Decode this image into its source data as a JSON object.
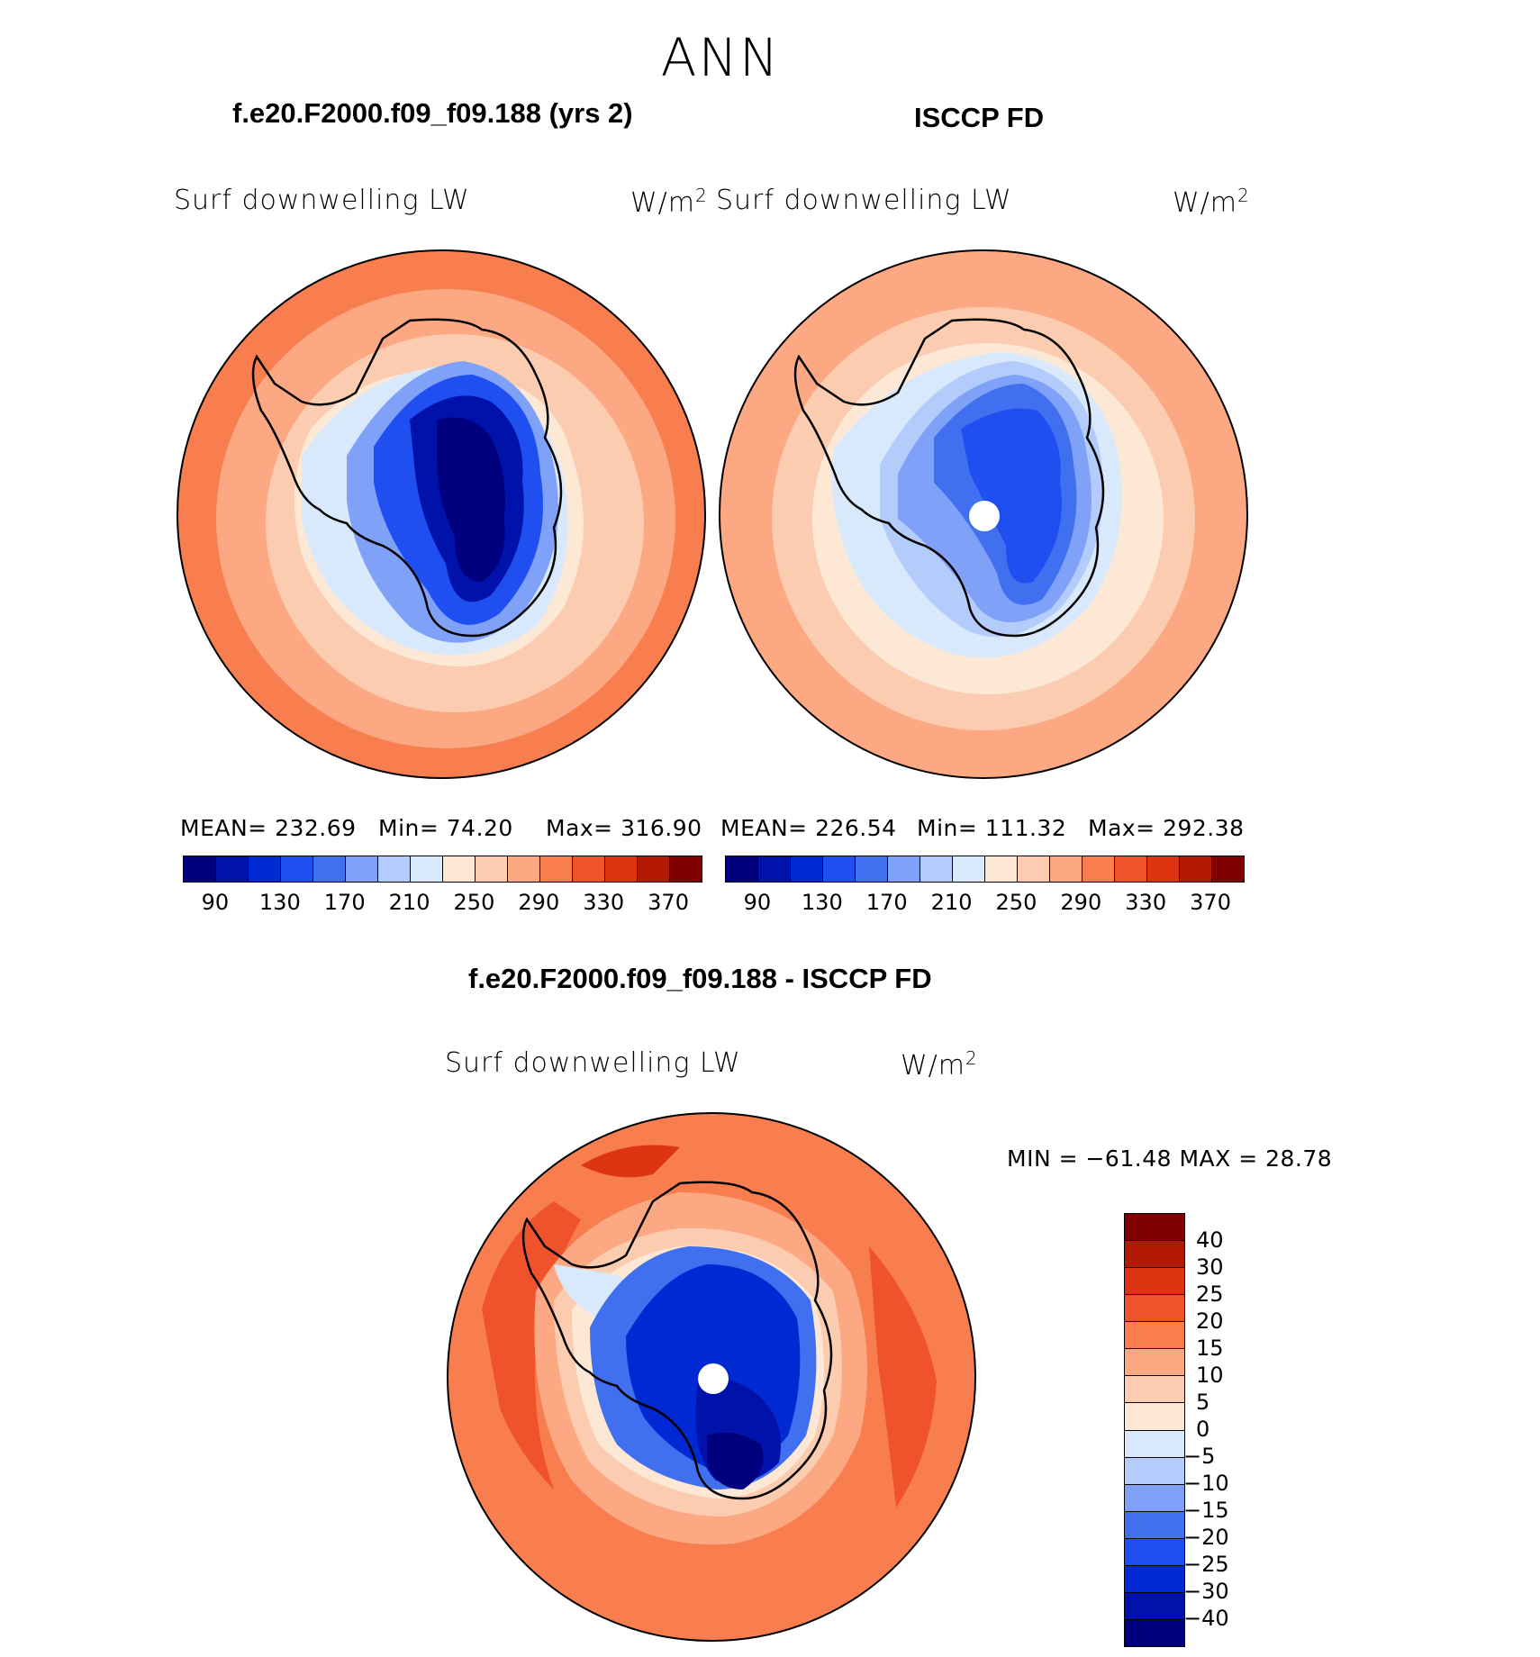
{
  "title": "ANN",
  "panels": [
    {
      "title": "f.e20.F2000.f09_f09.188 (yrs 2)",
      "variable": "Surf downwelling LW",
      "units_base": "W/m",
      "units_exp": "2",
      "stats": {
        "mean": "MEAN=  232.69",
        "min": "Min=    74.20",
        "max": "Max=  316.90"
      },
      "colorbar_ticks": [
        "90",
        "130",
        "170",
        "210",
        "250",
        "290",
        "330",
        "370"
      ]
    },
    {
      "title": "ISCCP FD",
      "variable": "Surf downwelling LW",
      "units_base": "W/m",
      "units_exp": "2",
      "stats": {
        "mean": "MEAN=  226.54",
        "min": "Min=  111.32",
        "max": "Max=  292.38"
      },
      "colorbar_ticks": [
        "90",
        "130",
        "170",
        "210",
        "250",
        "290",
        "330",
        "370"
      ]
    }
  ],
  "difference": {
    "title": "f.e20.F2000.f09_f09.188 - ISCCP FD",
    "variable": "Surf downwelling LW",
    "units_base": "W/m",
    "units_exp": "2",
    "minmax": "MIN  =  −61.48  MAX  =    28.78",
    "colorbar_ticks": [
      "40",
      "30",
      "25",
      "20",
      "15",
      "10",
      "5",
      "0",
      "−5",
      "−10",
      "−15",
      "−20",
      "−25",
      "−30",
      "−40"
    ]
  },
  "colors": {
    "abs_scale": [
      "#00007f",
      "#0012aa",
      "#0028d3",
      "#1f4ff0",
      "#4070f0",
      "#7fa1f7",
      "#b3ccfb",
      "#d9e9fc",
      "#fde8d6",
      "#fcccb0",
      "#fca883",
      "#f87e50",
      "#f0522b",
      "#dd3412",
      "#b31a05",
      "#7f0000"
    ],
    "diff_scale": [
      "#7f0000",
      "#b31a05",
      "#dd3412",
      "#f0522b",
      "#f87e50",
      "#fca883",
      "#fcccb0",
      "#fde8d6",
      "#d9e9fc",
      "#b3ccfb",
      "#7fa1f7",
      "#4070f0",
      "#1f4ff0",
      "#0028d3",
      "#0012aa",
      "#00007f"
    ]
  }
}
